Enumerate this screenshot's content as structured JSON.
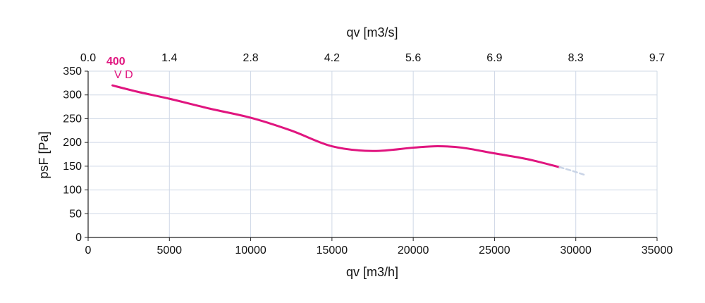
{
  "chart_data": {
    "type": "line",
    "xlabel": "qv [m3/h]",
    "x2label": "qv [m3/s]",
    "ylabel": "psF [Pa]",
    "xlim": [
      0,
      35000
    ],
    "ylim": [
      0,
      350
    ],
    "xticks": [
      "0",
      "5000",
      "10000",
      "15000",
      "20000",
      "25000",
      "30000",
      "35000"
    ],
    "x2ticks": [
      "0.0",
      "1.4",
      "2.8",
      "4.2",
      "5.6",
      "6.9",
      "8.3",
      "9.7"
    ],
    "yticks": [
      "0",
      "50",
      "100",
      "150",
      "200",
      "250",
      "300",
      "350"
    ],
    "grid": true,
    "labels": [
      "400",
      "V D"
    ],
    "series": [
      {
        "color": "#e0157f",
        "x": [
          1500,
          3000,
          5000,
          7500,
          10000,
          12500,
          15000,
          17500,
          20000,
          21500,
          23000,
          25000,
          27000,
          29000
        ],
        "y": [
          320,
          307,
          292,
          271,
          252,
          225,
          192,
          182,
          189,
          192,
          189,
          177,
          165,
          148
        ]
      },
      {
        "style": "dashed",
        "color": "#c9d4e6",
        "x": [
          29000,
          29800,
          30600
        ],
        "y": [
          148,
          140,
          131
        ]
      }
    ]
  }
}
